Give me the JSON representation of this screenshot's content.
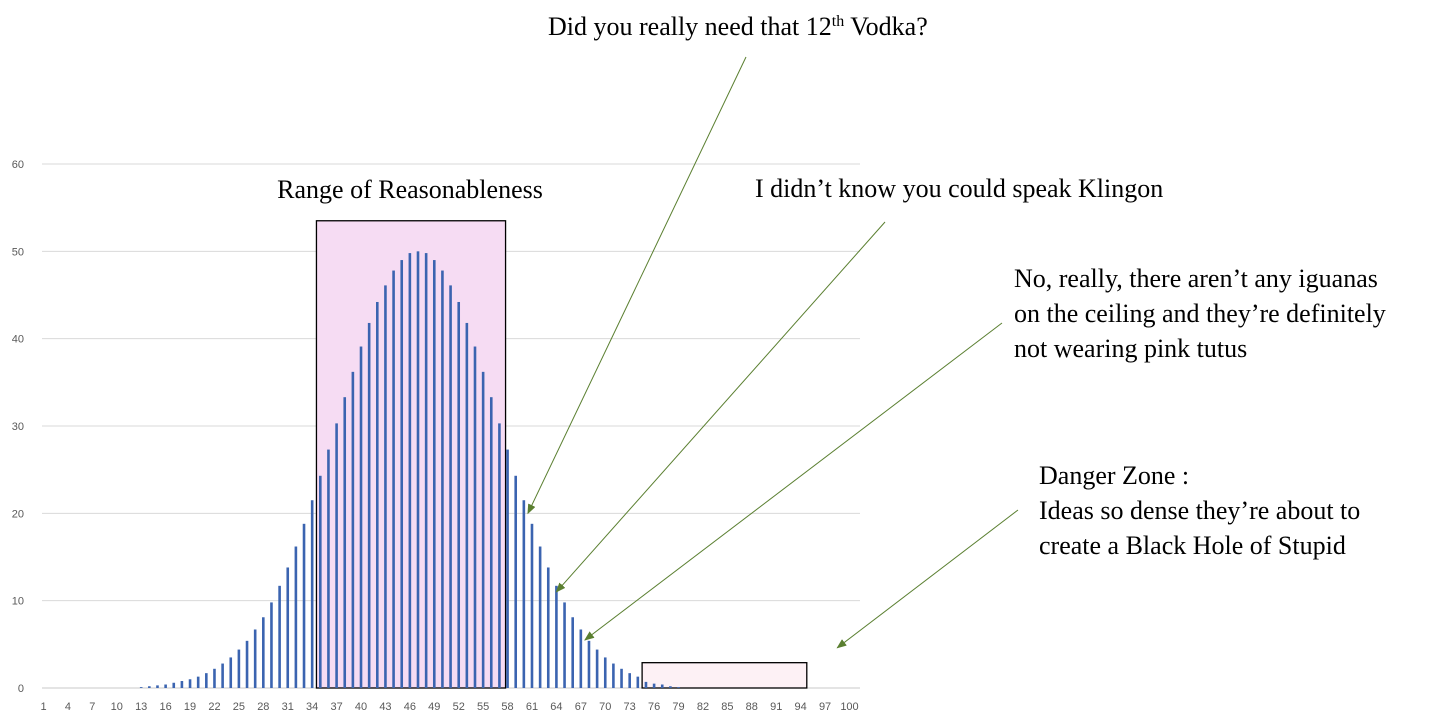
{
  "chart_data": {
    "type": "bar",
    "x_start": 1,
    "x_end": 100,
    "x_tick_labels": [
      "1",
      "4",
      "7",
      "10",
      "13",
      "16",
      "19",
      "22",
      "25",
      "28",
      "31",
      "34",
      "37",
      "40",
      "43",
      "46",
      "49",
      "52",
      "55",
      "58",
      "61",
      "64",
      "67",
      "70",
      "73",
      "76",
      "79",
      "82",
      "85",
      "88",
      "91",
      "94",
      "97",
      "100"
    ],
    "ylim": [
      0,
      60
    ],
    "y_ticks": [
      0,
      10,
      20,
      30,
      40,
      50,
      60
    ],
    "values": [
      0,
      0,
      0,
      0,
      0,
      0,
      0,
      0,
      0,
      0,
      0,
      0,
      0.1,
      0.2,
      0.3,
      0.4,
      0.6,
      0.8,
      1.0,
      1.3,
      1.7,
      2.2,
      2.8,
      3.5,
      4.4,
      5.4,
      6.7,
      8.1,
      9.8,
      11.7,
      13.8,
      16.2,
      18.8,
      21.5,
      24.3,
      27.3,
      30.3,
      33.3,
      36.2,
      39.1,
      41.8,
      44.2,
      46.1,
      47.8,
      49.0,
      49.8,
      50.0,
      49.8,
      49.0,
      47.8,
      46.1,
      44.2,
      41.8,
      39.1,
      36.2,
      33.3,
      30.3,
      27.3,
      24.3,
      21.5,
      18.8,
      16.2,
      13.8,
      11.7,
      9.8,
      8.1,
      6.7,
      5.4,
      4.4,
      3.5,
      2.8,
      2.2,
      1.7,
      1.3,
      0.7,
      0.5,
      0.4,
      0.2,
      0.1,
      0,
      0,
      0,
      0,
      0,
      0,
      0,
      0,
      0,
      0,
      0,
      0,
      0,
      0,
      0,
      0,
      0,
      0,
      0,
      0,
      0
    ],
    "bar_color": "#3b64b0",
    "grid": true,
    "highlight_regions": [
      {
        "label": "Range of Reasonableness",
        "x_from": 36,
        "x_to": 58,
        "y_top": 53.5,
        "fill": "#f6dcf3",
        "stroke": "#000000"
      },
      {
        "label": "",
        "x_from": 76,
        "x_to": 95,
        "y_top": 2.9,
        "fill": "#fdf1f5",
        "stroke": "#000000"
      }
    ],
    "annotations": [
      {
        "line1": "Did you really need that 12",
        "sup": "th",
        "line1_end": " Vodka?",
        "points_to_x": 60.5,
        "points_to_y": 20
      },
      {
        "line1": "I didn’t know you could speak Klingon",
        "points_to_x": 64,
        "points_to_y": 11
      },
      {
        "lines": [
          "No, really, there aren’t any iguanas",
          "on the ceiling and they’re definitely",
          "not wearing pink tutus"
        ],
        "points_to_x": 67.5,
        "points_to_y": 5.5
      },
      {
        "lines": [
          "Danger Zone :",
          "Ideas so dense they’re about to",
          "create a Black Hole of Stupid"
        ],
        "points_to_x": 98.5,
        "points_to_y": 4.6
      }
    ],
    "arrow_color": "#5a7f30"
  }
}
